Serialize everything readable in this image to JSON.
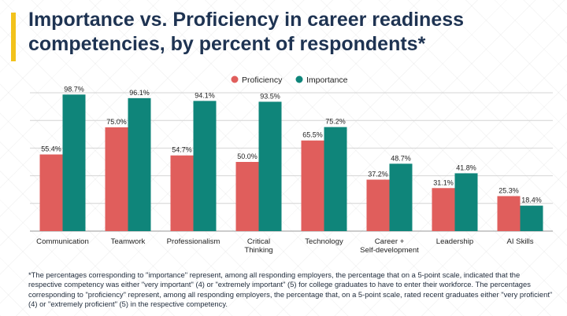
{
  "title": "Importance vs. Proficiency in career readiness competencies, by percent of respondents*",
  "footnote": "*The percentages corresponding to \"importance\" represent, among all responding employers, the percentage that on a 5-point scale, indicated that the respective competency was either \"very important\" (4) or \"extremely important\" (5) for college graduates to have to enter their workforce. The percentages corresponding to \"proficiency\" represent, among all responding employers, the percentage that, on a 5-point scale, rated recent graduates either \"very proficient\" (4) or \"extremely proficient\" (5) in the respective competency.",
  "colors": {
    "proficiency": "#e05e5c",
    "importance": "#0f857a",
    "accent": "#f2c21b",
    "title": "#1e3352"
  },
  "chart_data": {
    "type": "bar",
    "title": "Importance vs. Proficiency in career readiness competencies, by percent of respondents*",
    "xlabel": "",
    "ylabel": "",
    "ylim": [
      0,
      100
    ],
    "grid": true,
    "legend_position": "top-center",
    "categories": [
      "Communication",
      "Teamwork",
      "Professionalism",
      "Critical\nThinking",
      "Technology",
      "Career +\nSelf-development",
      "Leadership",
      "AI Skills"
    ],
    "series": [
      {
        "name": "Proficiency",
        "color": "#e05e5c",
        "values": [
          55.4,
          75.0,
          54.7,
          50.0,
          65.5,
          37.2,
          31.1,
          25.3
        ],
        "labels": [
          "55.4%",
          "75.0%",
          "54.7%",
          "50.0%",
          "65.5%",
          "37.2%",
          "31.1%",
          "25.3%"
        ]
      },
      {
        "name": "Importance",
        "color": "#0f857a",
        "values": [
          98.7,
          96.1,
          94.1,
          93.5,
          75.2,
          48.7,
          41.8,
          18.4
        ],
        "labels": [
          "98.7%",
          "96.1%",
          "94.1%",
          "93.5%",
          "75.2%",
          "48.7%",
          "41.8%",
          "18.4%"
        ]
      }
    ]
  }
}
